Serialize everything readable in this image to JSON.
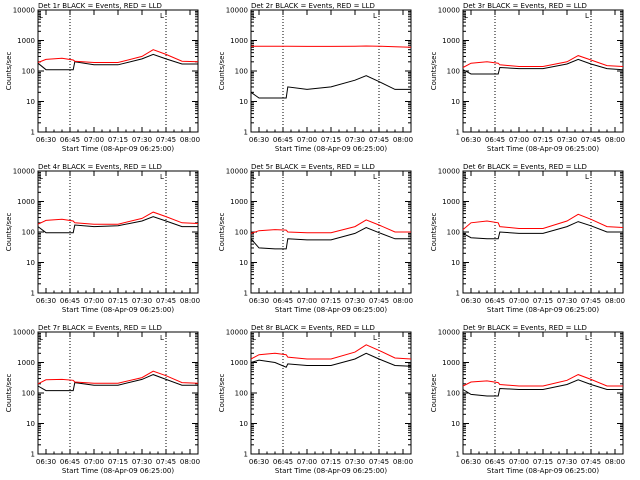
{
  "figure": {
    "xlabel": "Start Time (08-Apr-09 06:25:00)",
    "ylabel": "Counts/sec",
    "x_tick_labels": [
      "06:30",
      "06:45",
      "07:00",
      "07:15",
      "07:30",
      "07:45",
      "08:00"
    ],
    "y_tick_labels": [
      "1",
      "10",
      "100",
      "1000",
      "10000"
    ],
    "colors": {
      "events": "#000000",
      "lld": "#ff0000"
    },
    "markers": {
      "vertical_dotted_at": [
        "06:45",
        "07:45"
      ],
      "corner_marks": [
        "L",
        "L"
      ]
    }
  },
  "chart_data": [
    {
      "type": "line",
      "title": "Det 1r BLACK = Events, RED = LLD",
      "xlabel": "Start Time (08-Apr-09 06:25:00)",
      "ylabel": "Counts/sec",
      "x": [
        "06:25",
        "06:30",
        "06:40",
        "06:47",
        "06:48",
        "07:00",
        "07:15",
        "07:30",
        "07:37",
        "07:45",
        "07:55",
        "08:05"
      ],
      "xlim": [
        "06:25",
        "08:05"
      ],
      "ylim": [
        1,
        10000
      ],
      "yscale": "log",
      "grid": false,
      "series": [
        {
          "values": [
            180,
            110,
            110,
            110,
            200,
            160,
            160,
            250,
            350,
            250,
            170,
            170
          ]
        },
        {
          "values": [
            190,
            240,
            260,
            230,
            210,
            190,
            190,
            300,
            500,
            350,
            210,
            200
          ]
        }
      ]
    },
    {
      "type": "line",
      "title": "Det 2r BLACK = Events, RED = LLD",
      "xlabel": "Start Time (08-Apr-09 06:25:00)",
      "ylabel": "Counts/sec",
      "x": [
        "06:25",
        "06:30",
        "06:40",
        "06:47",
        "06:48",
        "07:00",
        "07:15",
        "07:30",
        "07:37",
        "07:45",
        "07:55",
        "08:05"
      ],
      "xlim": [
        "06:25",
        "08:05"
      ],
      "ylim": [
        1,
        10000
      ],
      "yscale": "log",
      "grid": false,
      "series": [
        {
          "values": [
            20,
            13,
            13,
            13,
            30,
            25,
            30,
            50,
            70,
            45,
            25,
            25
          ]
        },
        {
          "values": [
            650,
            650,
            650,
            650,
            650,
            640,
            640,
            650,
            660,
            650,
            620,
            600
          ]
        }
      ]
    },
    {
      "type": "line",
      "title": "Det 3r BLACK = Events, RED = LLD",
      "xlabel": "Start Time (08-Apr-09 06:25:00)",
      "ylabel": "Counts/sec",
      "x": [
        "06:25",
        "06:30",
        "06:40",
        "06:47",
        "06:48",
        "07:00",
        "07:15",
        "07:30",
        "07:37",
        "07:45",
        "07:55",
        "08:05"
      ],
      "xlim": [
        "06:25",
        "08:05"
      ],
      "ylim": [
        1,
        10000
      ],
      "yscale": "log",
      "grid": false,
      "series": [
        {
          "values": [
            110,
            80,
            80,
            80,
            130,
            120,
            120,
            170,
            240,
            170,
            120,
            110
          ]
        },
        {
          "values": [
            130,
            180,
            200,
            180,
            160,
            140,
            140,
            200,
            320,
            230,
            150,
            140
          ]
        }
      ]
    },
    {
      "type": "line",
      "title": "Det 4r BLACK = Events, RED = LLD",
      "xlabel": "Start Time (08-Apr-09 06:25:00)",
      "ylabel": "Counts/sec",
      "x": [
        "06:25",
        "06:30",
        "06:40",
        "06:47",
        "06:48",
        "07:00",
        "07:15",
        "07:30",
        "07:37",
        "07:45",
        "07:55",
        "08:05"
      ],
      "xlim": [
        "06:25",
        "08:05"
      ],
      "ylim": [
        1,
        10000
      ],
      "yscale": "log",
      "grid": false,
      "series": [
        {
          "values": [
            150,
            95,
            95,
            95,
            170,
            150,
            160,
            230,
            320,
            230,
            150,
            150
          ]
        },
        {
          "values": [
            180,
            240,
            260,
            230,
            200,
            180,
            180,
            280,
            450,
            320,
            200,
            190
          ]
        }
      ]
    },
    {
      "type": "line",
      "title": "Det 5r BLACK = Events, RED = LLD",
      "xlabel": "Start Time (08-Apr-09 06:25:00)",
      "ylabel": "Counts/sec",
      "x": [
        "06:25",
        "06:30",
        "06:40",
        "06:47",
        "06:48",
        "07:00",
        "07:15",
        "07:30",
        "07:37",
        "07:45",
        "07:55",
        "08:05"
      ],
      "xlim": [
        "06:25",
        "08:05"
      ],
      "ylim": [
        1,
        10000
      ],
      "yscale": "log",
      "grid": false,
      "series": [
        {
          "values": [
            60,
            30,
            28,
            28,
            60,
            55,
            55,
            90,
            140,
            95,
            60,
            60
          ]
        },
        {
          "values": [
            90,
            110,
            120,
            115,
            100,
            95,
            95,
            150,
            250,
            170,
            100,
            100
          ]
        }
      ]
    },
    {
      "type": "line",
      "title": "Det 6r BLACK = Events, RED = LLD",
      "xlabel": "Start Time (08-Apr-09 06:25:00)",
      "ylabel": "Counts/sec",
      "x": [
        "06:25",
        "06:30",
        "06:40",
        "06:47",
        "06:48",
        "07:00",
        "07:15",
        "07:30",
        "07:37",
        "07:45",
        "07:55",
        "08:05"
      ],
      "xlim": [
        "06:25",
        "08:05"
      ],
      "ylim": [
        1,
        10000
      ],
      "yscale": "log",
      "grid": false,
      "series": [
        {
          "values": [
            90,
            65,
            60,
            60,
            100,
            90,
            90,
            150,
            220,
            160,
            100,
            100
          ]
        },
        {
          "values": [
            120,
            200,
            230,
            200,
            150,
            130,
            130,
            230,
            380,
            260,
            150,
            140
          ]
        }
      ]
    },
    {
      "type": "line",
      "title": "Det 7r BLACK = Events, RED = LLD",
      "xlabel": "Start Time (08-Apr-09 06:25:00)",
      "ylabel": "Counts/sec",
      "x": [
        "06:25",
        "06:30",
        "06:40",
        "06:47",
        "06:48",
        "07:00",
        "07:15",
        "07:30",
        "07:37",
        "07:45",
        "07:55",
        "08:05"
      ],
      "xlim": [
        "06:25",
        "08:05"
      ],
      "ylim": [
        1,
        10000
      ],
      "yscale": "log",
      "grid": false,
      "series": [
        {
          "values": [
            170,
            120,
            120,
            120,
            220,
            180,
            180,
            280,
            400,
            280,
            180,
            180
          ]
        },
        {
          "values": [
            200,
            270,
            280,
            260,
            230,
            210,
            210,
            320,
            520,
            370,
            220,
            210
          ]
        }
      ]
    },
    {
      "type": "line",
      "title": "Det 8r BLACK = Events, RED = LLD",
      "xlabel": "Start Time (08-Apr-09 06:25:00)",
      "ylabel": "Counts/sec",
      "x": [
        "06:25",
        "06:30",
        "06:40",
        "06:47",
        "06:48",
        "07:00",
        "07:15",
        "07:30",
        "07:37",
        "07:45",
        "07:55",
        "08:05"
      ],
      "xlim": [
        "06:25",
        "08:05"
      ],
      "ylim": [
        1,
        10000
      ],
      "yscale": "log",
      "grid": false,
      "series": [
        {
          "values": [
            1000,
            1200,
            1000,
            700,
            900,
            800,
            800,
            1300,
            2000,
            1300,
            800,
            750
          ]
        },
        {
          "values": [
            1300,
            1800,
            2000,
            1800,
            1500,
            1300,
            1300,
            2200,
            3800,
            2500,
            1400,
            1300
          ]
        }
      ]
    },
    {
      "type": "line",
      "title": "Det 9r BLACK = Events, RED = LLD",
      "xlabel": "Start Time (08-Apr-09 06:25:00)",
      "ylabel": "Counts/sec",
      "x": [
        "06:25",
        "06:30",
        "06:40",
        "06:47",
        "06:48",
        "07:00",
        "07:15",
        "07:30",
        "07:37",
        "07:45",
        "07:55",
        "08:05"
      ],
      "xlim": [
        "06:25",
        "08:05"
      ],
      "ylim": [
        1,
        10000
      ],
      "yscale": "log",
      "grid": false,
      "series": [
        {
          "values": [
            130,
            90,
            80,
            80,
            140,
            130,
            130,
            190,
            270,
            190,
            130,
            130
          ]
        },
        {
          "values": [
            170,
            230,
            250,
            220,
            190,
            170,
            170,
            260,
            400,
            280,
            170,
            170
          ]
        }
      ]
    }
  ]
}
